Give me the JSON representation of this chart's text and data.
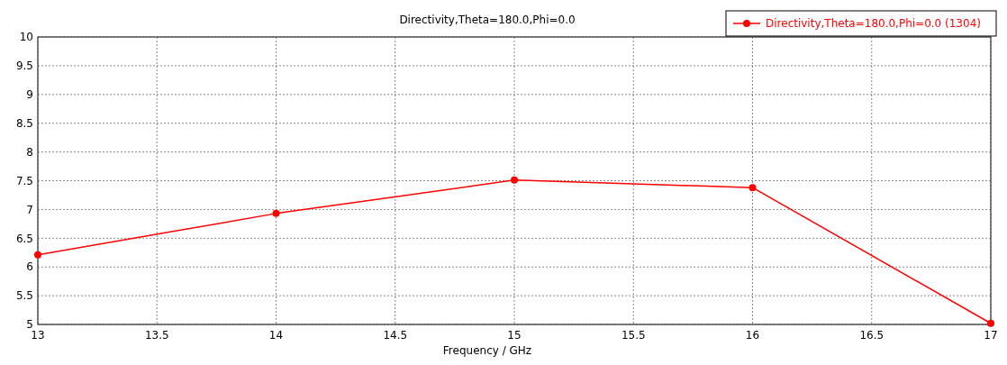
{
  "chart_data": {
    "type": "line",
    "title": "Directivity,Theta=180.0,Phi=0.0",
    "xlabel": "Frequency / GHz",
    "x": [
      13,
      14,
      15,
      16,
      17
    ],
    "series": [
      {
        "name": "Directivity,Theta=180.0,Phi=0.0 (1304)",
        "color": "#ff0000",
        "values": [
          6.21,
          6.93,
          7.51,
          7.38,
          5.02
        ]
      }
    ],
    "xlim": [
      13,
      17
    ],
    "xticks": [
      13,
      13.5,
      14,
      14.5,
      15,
      15.5,
      16,
      16.5,
      17
    ],
    "ylim": [
      5,
      10
    ],
    "yticks": [
      5,
      5.5,
      6,
      6.5,
      7,
      7.5,
      8,
      8.5,
      9,
      9.5,
      10
    ],
    "grid": true,
    "legend": "top right",
    "marker": "circle",
    "line_style": "solid"
  }
}
